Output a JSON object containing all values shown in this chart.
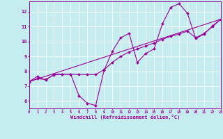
{
  "bg_color": "#c5ecee",
  "line_color": "#990099",
  "grid_color": "#ffffff",
  "xlabel": "Windchill (Refroidissement éolien,°C)",
  "xlim": [
    0,
    23
  ],
  "ylim": [
    5.5,
    12.7
  ],
  "yticks": [
    6,
    7,
    8,
    9,
    10,
    11,
    12
  ],
  "xticks": [
    0,
    1,
    2,
    3,
    4,
    5,
    6,
    7,
    8,
    9,
    10,
    11,
    12,
    13,
    14,
    15,
    16,
    17,
    18,
    19,
    20,
    21,
    22,
    23
  ],
  "curve1_x": [
    0,
    1,
    2,
    3,
    4,
    5,
    6,
    7,
    8,
    9,
    10,
    11,
    12,
    13,
    14,
    15,
    16,
    17,
    18,
    19,
    20,
    21,
    22,
    23
  ],
  "curve1_y": [
    7.3,
    7.65,
    7.4,
    7.8,
    7.8,
    7.8,
    6.35,
    5.85,
    5.7,
    8.05,
    9.35,
    10.25,
    10.55,
    8.6,
    9.2,
    9.5,
    11.2,
    12.3,
    12.55,
    11.9,
    10.2,
    10.5,
    11.05,
    11.5
  ],
  "curve2_x": [
    0,
    1,
    2,
    3,
    4,
    5,
    6,
    7,
    8,
    9,
    10,
    11,
    12,
    13,
    14,
    15,
    16,
    17,
    18,
    19,
    20,
    21,
    22,
    23
  ],
  "curve2_y": [
    7.3,
    7.5,
    7.45,
    7.75,
    7.8,
    7.8,
    7.78,
    7.78,
    7.78,
    8.1,
    8.6,
    9.0,
    9.3,
    9.5,
    9.7,
    9.9,
    10.15,
    10.35,
    10.5,
    10.7,
    10.25,
    10.55,
    11.0,
    11.5
  ],
  "curve3_x": [
    0,
    23
  ],
  "curve3_y": [
    7.3,
    11.5
  ]
}
